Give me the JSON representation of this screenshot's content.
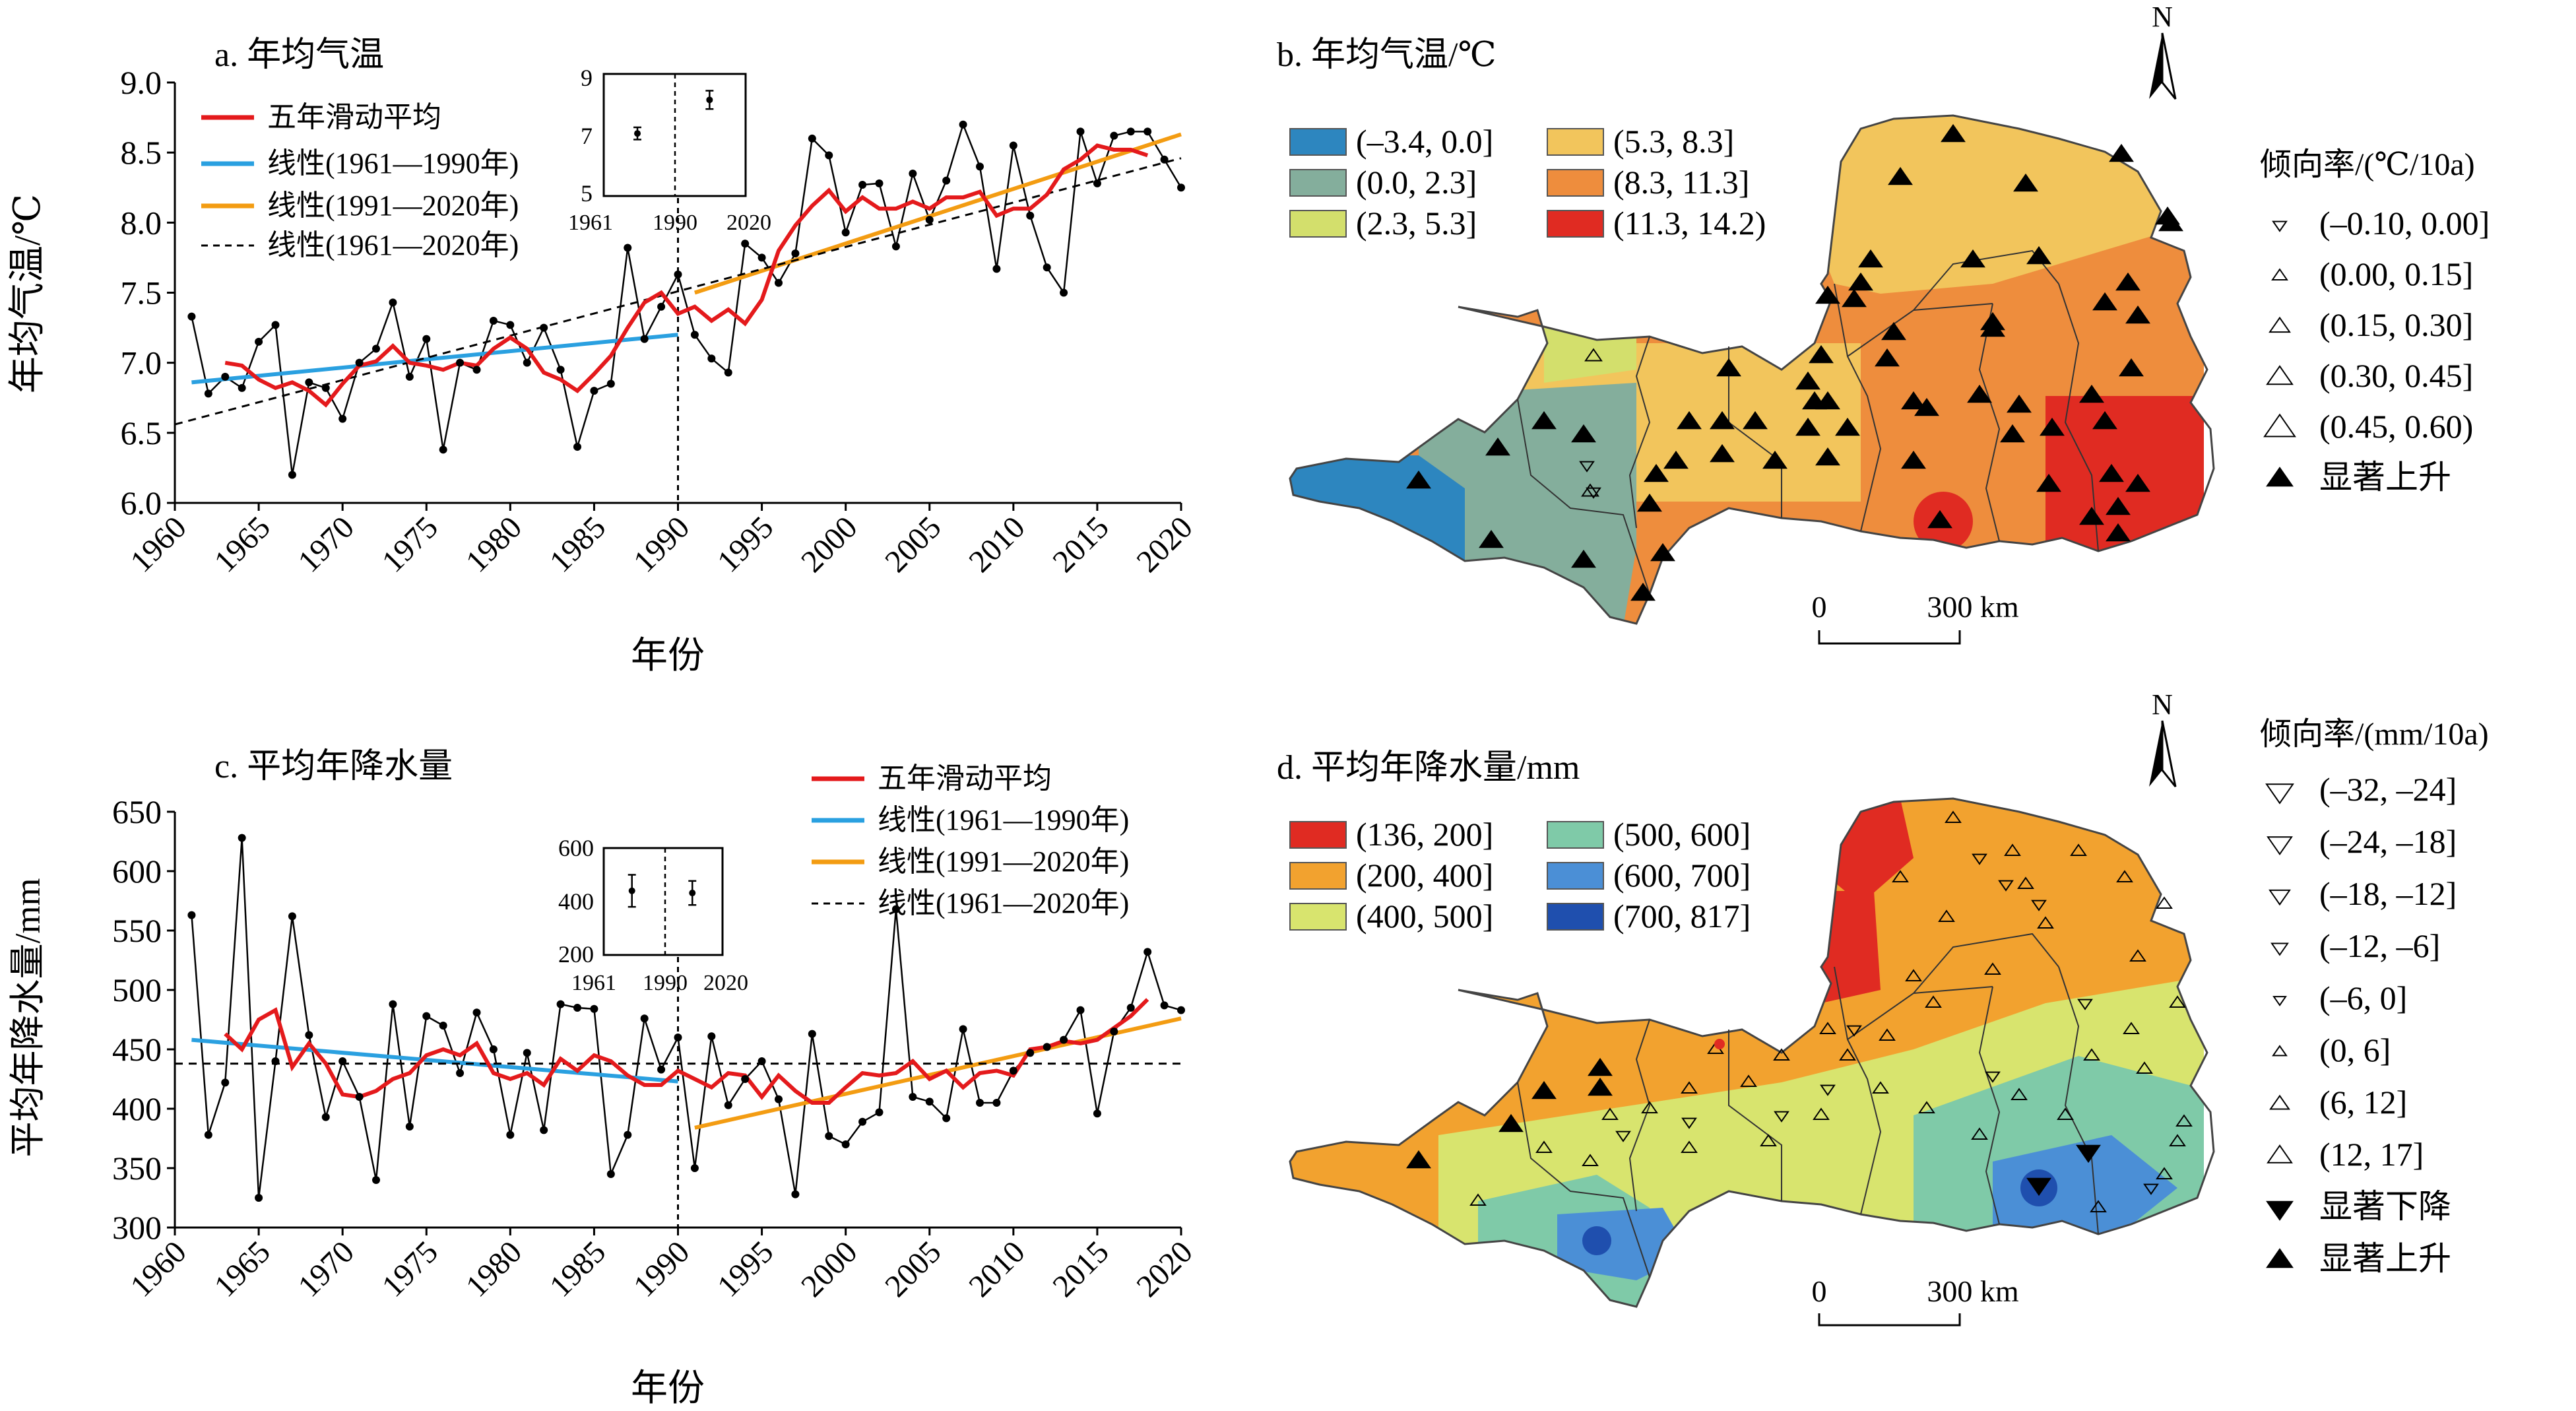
{
  "panels": {
    "a": {
      "title": "a. 年均气温",
      "xlabel": "年份",
      "ylabel": "年均气温/℃",
      "legend": [
        "五年滑动平均",
        "线性(1961—1990年)",
        "线性(1991—2020年)",
        "线性(1961—2020年)"
      ],
      "inset": {
        "yticks": [
          "9",
          "7",
          "5"
        ],
        "xticks": [
          "1961",
          "1990",
          "2020"
        ]
      }
    },
    "b": {
      "title": "b. 年均气温/℃",
      "north": "N",
      "scale": [
        "0",
        "300 km"
      ],
      "legend_left": [
        "(–3.4, 0.0]",
        "(0.0, 2.3]",
        "(2.3, 5.3]",
        "(5.3, 8.3]",
        "(8.3, 11.3]",
        "(11.3, 14.2)"
      ],
      "trend_title": "倾向率/(℃/10a)",
      "trend_items": [
        "(–0.10, 0.00]",
        "(0.00, 0.15]",
        "(0.15, 0.30]",
        "(0.30, 0.45]",
        "(0.45, 0.60)",
        "显著上升"
      ]
    },
    "c": {
      "title": "c. 平均年降水量",
      "xlabel": "年份",
      "ylabel": "平均年降水量/mm",
      "legend": [
        "五年滑动平均",
        "线性(1961—1990年)",
        "线性(1991—2020年)",
        "线性(1961—2020年)"
      ],
      "inset": {
        "yticks": [
          "600",
          "400",
          "200"
        ],
        "xticks": [
          "1961",
          "1990",
          "2020"
        ]
      }
    },
    "d": {
      "title": "d. 平均年降水量/mm",
      "north": "N",
      "scale": [
        "0",
        "300 km"
      ],
      "legend_left": [
        "(136, 200]",
        "(200, 400]",
        "(400, 500]",
        "(500, 600]",
        "(600, 700]",
        "(700, 817]"
      ],
      "trend_title": "倾向率/(mm/10a)",
      "trend_items": [
        "(–32, –24]",
        "(–24, –18]",
        "(–18, –12]",
        "(–12, –6]",
        "(–6, 0]",
        "(0, 6]",
        "(6, 12]",
        "(12, 17]",
        "显著下降",
        "显著上升"
      ]
    }
  },
  "colors": {
    "moving_avg": "#e41a1c",
    "linear_early": "#2aa0e0",
    "linear_late": "#f39c12",
    "linear_all": "#000000",
    "temp_classes": [
      "#2d86bf",
      "#84ae9c",
      "#d3df6c",
      "#f2c55c",
      "#ee8d3d",
      "#e02b22"
    ],
    "precip_classes": [
      "#e02b22",
      "#f2a22f",
      "#d8e46e",
      "#7fcaa8",
      "#4b8fd6",
      "#1f4fae"
    ]
  },
  "chart_data": [
    {
      "type": "line",
      "panel": "a",
      "title": "a. 年均气温",
      "xlabel": "年份",
      "ylabel": "年均气温/℃",
      "xlim": [
        1960,
        2020
      ],
      "ylim": [
        6.0,
        9.0
      ],
      "xticks": [
        1960,
        1965,
        1970,
        1975,
        1980,
        1985,
        1990,
        1995,
        2000,
        2005,
        2010,
        2015,
        2020
      ],
      "yticks": [
        6.0,
        6.5,
        7.0,
        7.5,
        8.0,
        8.5,
        9.0
      ],
      "x": [
        1961,
        1962,
        1963,
        1964,
        1965,
        1966,
        1967,
        1968,
        1969,
        1970,
        1971,
        1972,
        1973,
        1974,
        1975,
        1976,
        1977,
        1978,
        1979,
        1980,
        1981,
        1982,
        1983,
        1984,
        1985,
        1986,
        1987,
        1988,
        1989,
        1990,
        1991,
        1992,
        1993,
        1994,
        1995,
        1996,
        1997,
        1998,
        1999,
        2000,
        2001,
        2002,
        2003,
        2004,
        2005,
        2006,
        2007,
        2008,
        2009,
        2010,
        2011,
        2012,
        2013,
        2014,
        2015,
        2016,
        2017,
        2018,
        2019,
        2020
      ],
      "series": [
        {
          "name": "年均气温",
          "values": [
            7.33,
            6.78,
            6.9,
            6.82,
            7.15,
            7.27,
            6.2,
            6.86,
            6.82,
            6.6,
            7.0,
            7.1,
            7.43,
            6.9,
            7.17,
            6.38,
            7.0,
            6.95,
            7.3,
            7.27,
            7.0,
            7.25,
            6.95,
            6.4,
            6.8,
            6.85,
            7.82,
            7.17,
            7.4,
            7.63,
            7.2,
            7.03,
            6.93,
            7.85,
            7.75,
            7.57,
            7.78,
            8.6,
            8.48,
            7.93,
            8.27,
            8.28,
            7.83,
            8.35,
            8.02,
            8.3,
            8.7,
            8.4,
            7.67,
            8.55,
            8.05,
            7.68,
            7.5,
            8.65,
            8.28,
            8.62,
            8.65,
            8.65,
            8.45,
            8.25
          ]
        },
        {
          "name": "五年滑动平均",
          "x": [
            1963,
            1964,
            1965,
            1966,
            1967,
            1968,
            1969,
            1970,
            1971,
            1972,
            1973,
            1974,
            1975,
            1976,
            1977,
            1978,
            1979,
            1980,
            1981,
            1982,
            1983,
            1984,
            1985,
            1986,
            1987,
            1988,
            1989,
            1990,
            1991,
            1992,
            1993,
            1994,
            1995,
            1996,
            1997,
            1998,
            1999,
            2000,
            2001,
            2002,
            2003,
            2004,
            2005,
            2006,
            2007,
            2008,
            2009,
            2010,
            2011,
            2012,
            2013,
            2014,
            2015,
            2016,
            2017,
            2018
          ],
          "values": [
            7.0,
            6.98,
            6.88,
            6.82,
            6.86,
            6.8,
            6.7,
            6.85,
            6.98,
            7.01,
            7.12,
            7.0,
            6.98,
            6.95,
            7.0,
            6.98,
            7.1,
            7.18,
            7.1,
            6.93,
            6.88,
            6.8,
            6.92,
            7.05,
            7.25,
            7.43,
            7.5,
            7.35,
            7.4,
            7.3,
            7.38,
            7.28,
            7.45,
            7.8,
            7.98,
            8.12,
            8.23,
            8.08,
            8.18,
            8.1,
            8.1,
            8.15,
            8.1,
            8.18,
            8.18,
            8.22,
            8.05,
            8.1,
            8.1,
            8.2,
            8.38,
            8.45,
            8.55,
            8.52,
            8.52,
            8.48
          ]
        },
        {
          "name": "线性(1961—1990年)",
          "x": [
            1961,
            1990
          ],
          "values": [
            6.86,
            7.2
          ]
        },
        {
          "name": "线性(1991—2020年)",
          "x": [
            1991,
            2020
          ],
          "values": [
            7.5,
            8.63
          ]
        },
        {
          "name": "线性(1961—2020年)",
          "x": [
            1960,
            2020
          ],
          "values": [
            6.56,
            8.46
          ]
        }
      ],
      "inset": {
        "x": [
          1975,
          2005
        ],
        "values": [
          7.05,
          8.15
        ],
        "err": [
          0.2,
          0.3
        ],
        "ylim": [
          5,
          9
        ],
        "xticks": [
          1961,
          1990,
          2020
        ]
      }
    },
    {
      "type": "line",
      "panel": "c",
      "title": "c. 平均年降水量",
      "xlabel": "年份",
      "ylabel": "平均年降水量/mm",
      "xlim": [
        1960,
        2020
      ],
      "ylim": [
        300,
        650
      ],
      "xticks": [
        1960,
        1965,
        1970,
        1975,
        1980,
        1985,
        1990,
        1995,
        2000,
        2005,
        2010,
        2015,
        2020
      ],
      "yticks": [
        300,
        350,
        400,
        450,
        500,
        550,
        600,
        650
      ],
      "x": [
        1961,
        1962,
        1963,
        1964,
        1965,
        1966,
        1967,
        1968,
        1969,
        1970,
        1971,
        1972,
        1973,
        1974,
        1975,
        1976,
        1977,
        1978,
        1979,
        1980,
        1981,
        1982,
        1983,
        1984,
        1985,
        1986,
        1987,
        1988,
        1989,
        1990,
        1991,
        1992,
        1993,
        1994,
        1995,
        1996,
        1997,
        1998,
        1999,
        2000,
        2001,
        2002,
        2003,
        2004,
        2005,
        2006,
        2007,
        2008,
        2009,
        2010,
        2011,
        2012,
        2013,
        2014,
        2015,
        2016,
        2017,
        2018,
        2019,
        2020
      ],
      "series": [
        {
          "name": "平均年降水量",
          "values": [
            563,
            378,
            422,
            628,
            325,
            440,
            562,
            462,
            393,
            440,
            410,
            340,
            488,
            385,
            478,
            470,
            430,
            481,
            450,
            378,
            447,
            382,
            488,
            485,
            484,
            345,
            378,
            476,
            433,
            460,
            350,
            461,
            403,
            425,
            440,
            408,
            328,
            463,
            377,
            370,
            389,
            397,
            568,
            410,
            406,
            392,
            467,
            405,
            405,
            432,
            447,
            452,
            458,
            483,
            396,
            465,
            485,
            532,
            487,
            483
          ]
        },
        {
          "name": "五年滑动平均",
          "x": [
            1963,
            1964,
            1965,
            1966,
            1967,
            1968,
            1969,
            1970,
            1971,
            1972,
            1973,
            1974,
            1975,
            1976,
            1977,
            1978,
            1979,
            1980,
            1981,
            1982,
            1983,
            1984,
            1985,
            1986,
            1987,
            1988,
            1989,
            1990,
            1991,
            1992,
            1993,
            1994,
            1995,
            1996,
            1997,
            1998,
            1999,
            2000,
            2001,
            2002,
            2003,
            2004,
            2005,
            2006,
            2007,
            2008,
            2009,
            2010,
            2011,
            2012,
            2013,
            2014,
            2015,
            2016,
            2017,
            2018
          ],
          "values": [
            463,
            450,
            475,
            483,
            435,
            455,
            438,
            412,
            410,
            415,
            425,
            430,
            445,
            450,
            445,
            455,
            430,
            425,
            430,
            420,
            442,
            432,
            445,
            440,
            428,
            420,
            420,
            432,
            425,
            418,
            430,
            428,
            410,
            428,
            415,
            405,
            405,
            418,
            430,
            428,
            430,
            440,
            425,
            432,
            418,
            430,
            432,
            428,
            450,
            452,
            457,
            455,
            458,
            468,
            478,
            492
          ]
        },
        {
          "name": "线性(1961—1990年)",
          "x": [
            1961,
            1990
          ],
          "values": [
            458,
            423
          ]
        },
        {
          "name": "线性(1991—2020年)",
          "x": [
            1991,
            2020
          ],
          "values": [
            384,
            476
          ]
        },
        {
          "name": "线性(1961—2020年)",
          "x": [
            1960,
            2020
          ],
          "values": [
            438,
            438
          ]
        }
      ],
      "inset": {
        "x": [
          1975,
          2005
        ],
        "values": [
          440,
          432
        ],
        "err": [
          60,
          45
        ],
        "ylim": [
          200,
          600
        ],
        "xticks": [
          1961,
          1990,
          2020
        ]
      }
    }
  ]
}
